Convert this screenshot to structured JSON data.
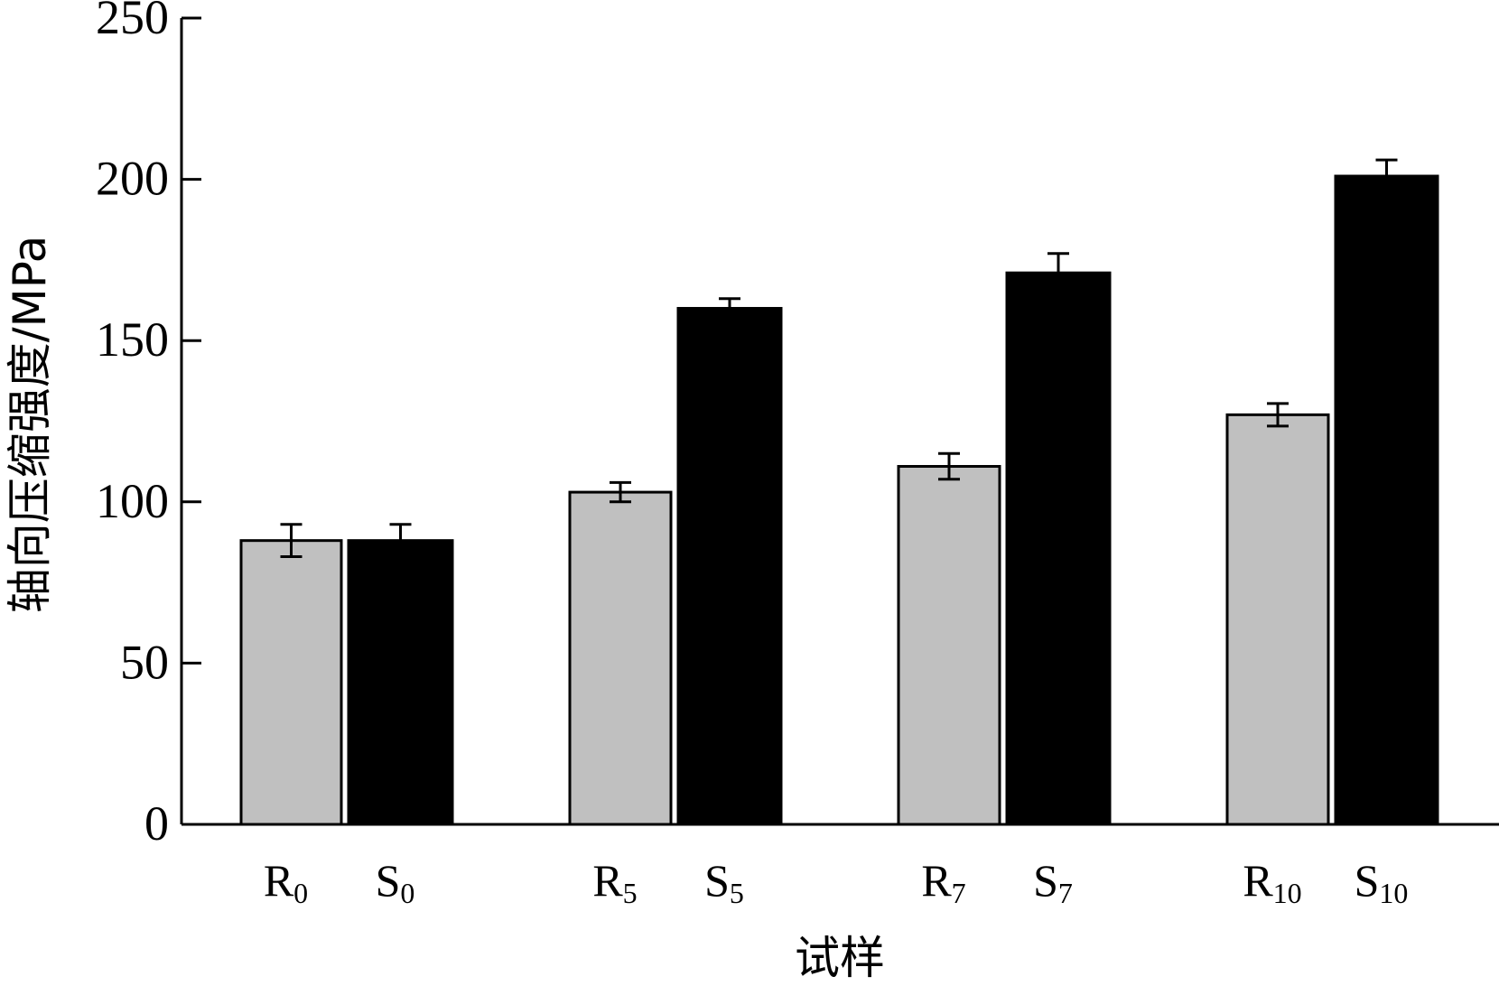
{
  "chart_data": {
    "type": "bar",
    "title": "",
    "xlabel": "试样",
    "ylabel": "轴向压缩强度/MPa",
    "ylim": [
      0,
      250
    ],
    "yticks": [
      0,
      50,
      100,
      150,
      200,
      250
    ],
    "grid": false,
    "series": [
      {
        "bars": [
          {
            "label_base": "R",
            "label_sub": "0",
            "value": 88,
            "error": 5,
            "color": "#c0c0c0"
          },
          {
            "label_base": "S",
            "label_sub": "0",
            "value": 88,
            "error": 5,
            "color": "#000000"
          },
          {
            "label_base": "R",
            "label_sub": "5",
            "value": 103,
            "error": 3,
            "color": "#c0c0c0"
          },
          {
            "label_base": "S",
            "label_sub": "5",
            "value": 160,
            "error": 3,
            "color": "#000000"
          },
          {
            "label_base": "R",
            "label_sub": "7",
            "value": 111,
            "error": 4,
            "color": "#c0c0c0"
          },
          {
            "label_base": "S",
            "label_sub": "7",
            "value": 171,
            "error": 6,
            "color": "#000000"
          },
          {
            "label_base": "R",
            "label_sub": "10",
            "value": 127,
            "error": 3.5,
            "color": "#c0c0c0"
          },
          {
            "label_base": "S",
            "label_sub": "10",
            "value": 201,
            "error": 5,
            "color": "#000000"
          }
        ]
      }
    ]
  }
}
